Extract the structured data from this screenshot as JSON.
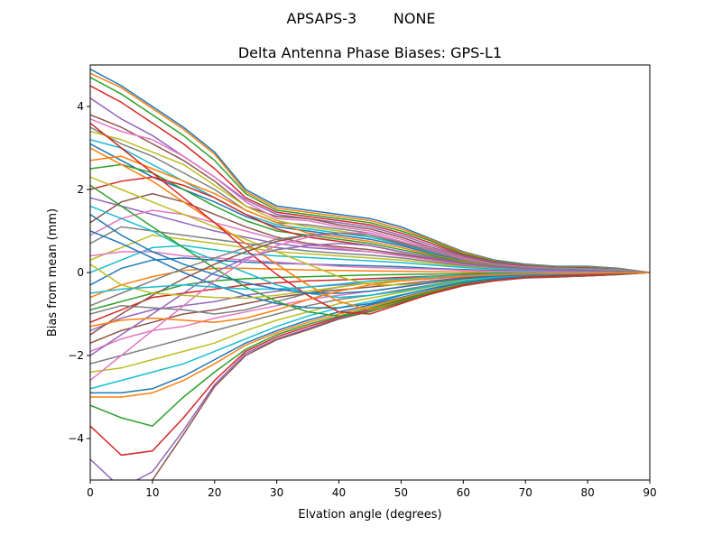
{
  "chart_data": {
    "type": "line",
    "suptitle": "APSAPS-3        NONE",
    "title": "Delta Antenna Phase Biases: GPS-L1",
    "xlabel": "Elvation angle (degrees)",
    "ylabel": "Bias from mean (mm)",
    "xlim": [
      0,
      90
    ],
    "ylim": [
      -5,
      5
    ],
    "xticks": [
      0,
      10,
      20,
      30,
      40,
      50,
      60,
      70,
      80,
      90
    ],
    "yticks": [
      -4,
      -2,
      0,
      2,
      4
    ],
    "x": [
      0,
      5,
      10,
      15,
      20,
      25,
      30,
      35,
      40,
      45,
      50,
      55,
      60,
      65,
      70,
      75,
      80,
      85,
      90
    ],
    "colors": [
      "#1f77b4",
      "#ff7f0e",
      "#2ca02c",
      "#d62728",
      "#9467bd",
      "#8c564b",
      "#e377c2",
      "#7f7f7f",
      "#bcbd22",
      "#17becf"
    ],
    "series": [
      {
        "values": [
          4.9,
          4.5,
          4.0,
          3.5,
          2.9,
          2.0,
          1.6,
          1.5,
          1.4,
          1.3,
          1.1,
          0.8,
          0.5,
          0.3,
          0.2,
          0.15,
          0.15,
          0.1,
          0.0
        ]
      },
      {
        "values": [
          4.8,
          4.45,
          3.95,
          3.45,
          2.85,
          1.95,
          1.55,
          1.45,
          1.35,
          1.25,
          1.05,
          0.78,
          0.48,
          0.28,
          0.18,
          0.14,
          0.13,
          0.09,
          0.0
        ]
      },
      {
        "values": [
          4.7,
          4.3,
          3.8,
          3.3,
          2.7,
          1.9,
          1.5,
          1.4,
          1.3,
          1.2,
          1.0,
          0.75,
          0.45,
          0.27,
          0.17,
          0.13,
          0.12,
          0.08,
          0.0
        ]
      },
      {
        "values": [
          4.5,
          4.1,
          3.6,
          3.1,
          2.5,
          1.8,
          1.45,
          1.35,
          1.25,
          1.15,
          0.95,
          0.7,
          0.42,
          0.25,
          0.16,
          0.12,
          0.11,
          0.07,
          0.0
        ]
      },
      {
        "values": [
          4.2,
          3.7,
          3.3,
          2.8,
          2.3,
          1.75,
          1.4,
          1.3,
          1.2,
          1.1,
          0.9,
          0.65,
          0.4,
          0.24,
          0.15,
          0.12,
          0.1,
          0.07,
          0.0
        ]
      },
      {
        "values": [
          3.8,
          3.5,
          3.1,
          2.7,
          2.2,
          1.6,
          1.35,
          1.3,
          1.15,
          1.05,
          0.85,
          0.6,
          0.38,
          0.22,
          0.14,
          0.11,
          0.1,
          0.06,
          0.0
        ]
      },
      {
        "values": [
          3.7,
          3.4,
          3.2,
          2.8,
          2.3,
          1.7,
          1.3,
          1.25,
          1.1,
          1.0,
          0.8,
          0.58,
          0.36,
          0.2,
          0.13,
          0.1,
          0.09,
          0.06,
          0.0
        ]
      },
      {
        "values": [
          3.5,
          3.1,
          2.8,
          2.4,
          2.0,
          1.5,
          1.2,
          1.15,
          1.05,
          0.95,
          0.75,
          0.55,
          0.34,
          0.19,
          0.12,
          0.1,
          0.09,
          0.05,
          0.0
        ]
      },
      {
        "values": [
          3.4,
          3.2,
          2.9,
          2.6,
          2.1,
          1.6,
          1.25,
          1.1,
          1.0,
          0.9,
          0.7,
          0.5,
          0.32,
          0.18,
          0.12,
          0.09,
          0.08,
          0.05,
          0.0
        ]
      },
      {
        "values": [
          3.2,
          3.0,
          2.6,
          2.2,
          1.8,
          1.4,
          1.15,
          1.05,
          0.95,
          0.85,
          0.68,
          0.48,
          0.3,
          0.17,
          0.11,
          0.09,
          0.08,
          0.05,
          0.0
        ]
      },
      {
        "values": [
          3.1,
          2.7,
          2.3,
          2.0,
          1.7,
          1.35,
          1.1,
          1.0,
          0.9,
          0.8,
          0.65,
          0.45,
          0.28,
          0.16,
          0.1,
          0.08,
          0.07,
          0.04,
          0.0
        ]
      },
      {
        "values": [
          2.7,
          2.8,
          2.5,
          2.2,
          1.9,
          1.5,
          1.2,
          0.95,
          0.85,
          0.75,
          0.6,
          0.42,
          0.26,
          0.15,
          0.1,
          0.08,
          0.07,
          0.04,
          0.0
        ]
      },
      {
        "values": [
          2.5,
          2.6,
          2.4,
          2.0,
          1.6,
          1.25,
          1.0,
          0.9,
          0.8,
          0.7,
          0.55,
          0.4,
          0.24,
          0.14,
          0.09,
          0.07,
          0.06,
          0.04,
          0.0
        ]
      },
      {
        "values": [
          2.0,
          2.2,
          2.3,
          2.1,
          1.8,
          1.4,
          1.05,
          0.85,
          0.75,
          0.65,
          0.5,
          0.36,
          0.22,
          0.13,
          0.08,
          0.07,
          0.06,
          0.03,
          0.0
        ]
      },
      {
        "values": [
          1.8,
          1.6,
          1.4,
          1.2,
          1.0,
          0.85,
          0.7,
          0.6,
          0.55,
          0.5,
          0.42,
          0.3,
          0.2,
          0.12,
          0.08,
          0.06,
          0.05,
          0.03,
          0.0
        ]
      },
      {
        "values": [
          1.2,
          1.7,
          1.9,
          1.7,
          1.4,
          1.1,
          0.85,
          0.7,
          0.62,
          0.55,
          0.45,
          0.32,
          0.2,
          0.12,
          0.07,
          0.06,
          0.05,
          0.03,
          0.0
        ]
      },
      {
        "values": [
          0.9,
          1.3,
          1.5,
          1.4,
          1.2,
          1.0,
          0.8,
          0.66,
          0.58,
          0.5,
          0.4,
          0.3,
          0.18,
          0.11,
          0.07,
          0.05,
          0.05,
          0.03,
          0.0
        ]
      },
      {
        "values": [
          0.7,
          1.1,
          1.0,
          0.9,
          0.8,
          0.7,
          0.6,
          0.52,
          0.46,
          0.42,
          0.35,
          0.26,
          0.16,
          0.1,
          0.06,
          0.05,
          0.04,
          0.02,
          0.0
        ]
      },
      {
        "values": [
          0.3,
          0.6,
          0.9,
          0.8,
          0.7,
          0.6,
          0.5,
          0.45,
          0.4,
          0.35,
          0.3,
          0.22,
          0.14,
          0.09,
          0.06,
          0.05,
          0.04,
          0.02,
          0.0
        ]
      },
      {
        "values": [
          0.0,
          0.3,
          0.6,
          0.65,
          0.55,
          0.45,
          0.4,
          0.36,
          0.32,
          0.28,
          0.24,
          0.18,
          0.12,
          0.08,
          0.05,
          0.04,
          0.03,
          0.02,
          0.0
        ]
      },
      {
        "values": [
          -0.3,
          0.1,
          0.3,
          0.35,
          0.3,
          0.25,
          0.22,
          0.2,
          0.18,
          0.16,
          0.14,
          0.1,
          0.07,
          0.05,
          0.03,
          0.03,
          0.02,
          0.01,
          0.0
        ]
      },
      {
        "values": [
          -0.6,
          -0.3,
          -0.1,
          0.05,
          0.1,
          0.1,
          0.08,
          0.06,
          0.05,
          0.04,
          0.03,
          0.02,
          0.01,
          0.0,
          0.0,
          0.0,
          0.0,
          0.0,
          0.0
        ]
      },
      {
        "values": [
          -0.9,
          -0.7,
          -0.5,
          -0.3,
          -0.2,
          -0.15,
          -0.12,
          -0.1,
          -0.08,
          -0.06,
          -0.05,
          -0.04,
          -0.03,
          -0.02,
          -0.02,
          -0.01,
          -0.01,
          -0.01,
          0.0
        ]
      },
      {
        "values": [
          -1.2,
          -0.9,
          -0.6,
          -0.5,
          -0.4,
          -0.3,
          -0.25,
          -0.2,
          -0.18,
          -0.15,
          -0.12,
          -0.09,
          -0.06,
          -0.04,
          -0.03,
          -0.02,
          -0.02,
          -0.01,
          0.0
        ]
      },
      {
        "values": [
          -1.4,
          -1.1,
          -0.9,
          -0.8,
          -0.7,
          -0.55,
          -0.45,
          -0.35,
          -0.3,
          -0.25,
          -0.2,
          -0.15,
          -0.1,
          -0.07,
          -0.05,
          -0.04,
          -0.03,
          -0.02,
          0.0
        ]
      },
      {
        "values": [
          -1.7,
          -1.4,
          -1.2,
          -1.0,
          -0.9,
          -0.75,
          -0.6,
          -0.5,
          -0.42,
          -0.35,
          -0.28,
          -0.2,
          -0.13,
          -0.09,
          -0.06,
          -0.05,
          -0.04,
          -0.02,
          0.0
        ]
      },
      {
        "values": [
          -1.9,
          -1.6,
          -1.4,
          -1.3,
          -1.1,
          -0.95,
          -0.8,
          -0.65,
          -0.55,
          -0.45,
          -0.35,
          -0.25,
          -0.16,
          -0.1,
          -0.07,
          -0.06,
          -0.05,
          -0.03,
          0.0
        ]
      },
      {
        "values": [
          -2.2,
          -2.0,
          -1.8,
          -1.6,
          -1.4,
          -1.2,
          -1.0,
          -0.8,
          -0.65,
          -0.55,
          -0.42,
          -0.3,
          -0.19,
          -0.12,
          -0.08,
          -0.07,
          -0.05,
          -0.03,
          0.0
        ]
      },
      {
        "values": [
          -2.4,
          -2.3,
          -2.1,
          -1.9,
          -1.7,
          -1.4,
          -1.15,
          -0.95,
          -0.75,
          -0.62,
          -0.48,
          -0.34,
          -0.22,
          -0.14,
          -0.09,
          -0.08,
          -0.06,
          -0.03,
          0.0
        ]
      },
      {
        "values": [
          -2.8,
          -2.6,
          -2.4,
          -2.2,
          -1.9,
          -1.6,
          -1.3,
          -1.05,
          -0.85,
          -0.7,
          -0.54,
          -0.38,
          -0.24,
          -0.15,
          -0.1,
          -0.08,
          -0.06,
          -0.04,
          0.0
        ]
      },
      {
        "values": [
          -2.9,
          -2.9,
          -2.8,
          -2.5,
          -2.1,
          -1.7,
          -1.4,
          -1.15,
          -0.95,
          -0.78,
          -0.6,
          -0.42,
          -0.26,
          -0.16,
          -0.11,
          -0.09,
          -0.07,
          -0.04,
          0.0
        ]
      },
      {
        "values": [
          -3.0,
          -3.0,
          -2.9,
          -2.6,
          -2.2,
          -1.75,
          -1.45,
          -1.2,
          -1.0,
          -0.82,
          -0.62,
          -0.44,
          -0.27,
          -0.17,
          -0.11,
          -0.09,
          -0.07,
          -0.04,
          0.0
        ]
      },
      {
        "values": [
          -3.2,
          -3.5,
          -3.7,
          -3.0,
          -2.4,
          -1.85,
          -1.5,
          -1.25,
          -1.05,
          -0.86,
          -0.65,
          -0.46,
          -0.28,
          -0.18,
          -0.12,
          -0.1,
          -0.08,
          -0.04,
          0.0
        ]
      },
      {
        "values": [
          -3.7,
          -4.4,
          -4.3,
          -3.5,
          -2.6,
          -1.9,
          -1.55,
          -1.3,
          -1.08,
          -0.9,
          -0.68,
          -0.48,
          -0.3,
          -0.19,
          -0.12,
          -0.1,
          -0.08,
          -0.05,
          0.0
        ]
      },
      {
        "values": [
          -4.5,
          -5.2,
          -4.8,
          -3.8,
          -2.7,
          -1.95,
          -1.6,
          -1.35,
          -1.1,
          -0.92,
          -0.7,
          -0.5,
          -0.31,
          -0.2,
          -0.13,
          -0.1,
          -0.08,
          -0.05,
          0.0
        ]
      },
      {
        "values": [
          -5.3,
          -5.6,
          -5.0,
          -3.9,
          -2.75,
          -2.0,
          -1.62,
          -1.38,
          -1.12,
          -0.94,
          -0.72,
          -0.51,
          -0.32,
          -0.2,
          -0.13,
          -0.11,
          -0.08,
          -0.05,
          0.0
        ]
      },
      {
        "values": [
          0.4,
          0.5,
          0.5,
          0.4,
          0.35,
          0.3,
          0.25,
          0.2,
          0.15,
          0.12,
          0.1,
          0.08,
          0.05,
          0.03,
          0.02,
          0.02,
          0.01,
          0.01,
          0.0
        ]
      },
      {
        "values": [
          -1.0,
          -0.8,
          -0.85,
          -0.9,
          -1.0,
          -0.9,
          -0.7,
          -0.5,
          -0.35,
          -0.25,
          -0.18,
          -0.12,
          -0.08,
          -0.05,
          -0.03,
          -0.02,
          -0.02,
          -0.01,
          0.0
        ]
      },
      {
        "values": [
          2.3,
          2.0,
          1.7,
          1.4,
          1.1,
          0.8,
          0.5,
          0.2,
          -0.1,
          -0.3,
          -0.3,
          -0.25,
          -0.18,
          -0.12,
          -0.08,
          -0.06,
          -0.04,
          -0.02,
          0.0
        ]
      },
      {
        "values": [
          1.6,
          1.3,
          1.0,
          0.6,
          0.3,
          0.0,
          -0.3,
          -0.5,
          -0.6,
          -0.55,
          -0.45,
          -0.32,
          -0.2,
          -0.12,
          -0.08,
          -0.06,
          -0.04,
          -0.02,
          0.0
        ]
      },
      {
        "values": [
          1.0,
          0.7,
          0.35,
          0.0,
          -0.3,
          -0.55,
          -0.75,
          -0.85,
          -0.85,
          -0.75,
          -0.55,
          -0.38,
          -0.24,
          -0.15,
          -0.1,
          -0.07,
          -0.05,
          -0.03,
          0.0
        ]
      },
      {
        "values": [
          3.0,
          2.6,
          2.2,
          1.7,
          1.2,
          0.7,
          0.2,
          -0.3,
          -0.7,
          -0.9,
          -0.7,
          -0.48,
          -0.3,
          -0.19,
          -0.12,
          -0.09,
          -0.06,
          -0.03,
          0.0
        ]
      },
      {
        "values": [
          2.1,
          1.6,
          1.1,
          0.6,
          0.1,
          -0.35,
          -0.7,
          -0.95,
          -1.05,
          -0.95,
          -0.7,
          -0.48,
          -0.3,
          -0.19,
          -0.12,
          -0.09,
          -0.06,
          -0.03,
          0.0
        ]
      },
      {
        "values": [
          3.6,
          3.0,
          2.4,
          1.8,
          1.2,
          0.55,
          -0.05,
          -0.55,
          -0.95,
          -1.0,
          -0.75,
          -0.5,
          -0.3,
          -0.19,
          -0.12,
          -0.09,
          -0.06,
          -0.03,
          0.0
        ]
      },
      {
        "values": [
          -2.0,
          -1.5,
          -1.0,
          -0.5,
          0.0,
          0.35,
          0.55,
          0.65,
          0.7,
          0.65,
          0.5,
          0.35,
          0.22,
          0.13,
          0.08,
          0.06,
          0.05,
          0.03,
          0.0
        ]
      },
      {
        "values": [
          -1.5,
          -1.0,
          -0.55,
          -0.15,
          0.2,
          0.5,
          0.75,
          0.9,
          0.95,
          0.9,
          0.7,
          0.5,
          0.3,
          0.18,
          0.11,
          0.08,
          0.06,
          0.03,
          0.0
        ]
      },
      {
        "values": [
          -2.6,
          -2.0,
          -1.4,
          -0.8,
          -0.2,
          0.3,
          0.65,
          0.85,
          0.95,
          0.95,
          0.75,
          0.52,
          0.32,
          0.19,
          0.12,
          0.09,
          0.07,
          0.04,
          0.0
        ]
      },
      {
        "values": [
          -0.8,
          -0.5,
          -0.2,
          0.1,
          0.35,
          0.6,
          0.8,
          0.9,
          0.95,
          0.9,
          0.72,
          0.5,
          0.3,
          0.18,
          0.11,
          0.08,
          0.06,
          0.03,
          0.0
        ]
      },
      {
        "values": [
          0.2,
          -0.3,
          -0.5,
          -0.55,
          -0.6,
          -0.62,
          -0.55,
          -0.45,
          -0.35,
          -0.25,
          -0.18,
          -0.12,
          -0.08,
          -0.05,
          -0.03,
          -0.02,
          -0.02,
          -0.01,
          0.0
        ]
      },
      {
        "values": [
          -0.5,
          -0.4,
          -0.35,
          -0.3,
          -0.35,
          -0.4,
          -0.4,
          -0.35,
          -0.28,
          -0.2,
          -0.15,
          -0.1,
          -0.07,
          -0.04,
          -0.03,
          -0.02,
          -0.01,
          -0.01,
          0.0
        ]
      },
      {
        "values": [
          1.4,
          0.9,
          0.5,
          0.2,
          -0.05,
          -0.25,
          -0.4,
          -0.5,
          -0.5,
          -0.45,
          -0.35,
          -0.24,
          -0.15,
          -0.09,
          -0.06,
          -0.04,
          -0.03,
          -0.02,
          0.0
        ]
      },
      {
        "values": [
          -1.3,
          -1.15,
          -1.1,
          -1.15,
          -1.2,
          -1.1,
          -0.9,
          -0.65,
          -0.45,
          -0.3,
          -0.2,
          -0.14,
          -0.09,
          -0.06,
          -0.04,
          -0.03,
          -0.02,
          -0.01,
          0.0
        ]
      }
    ]
  }
}
